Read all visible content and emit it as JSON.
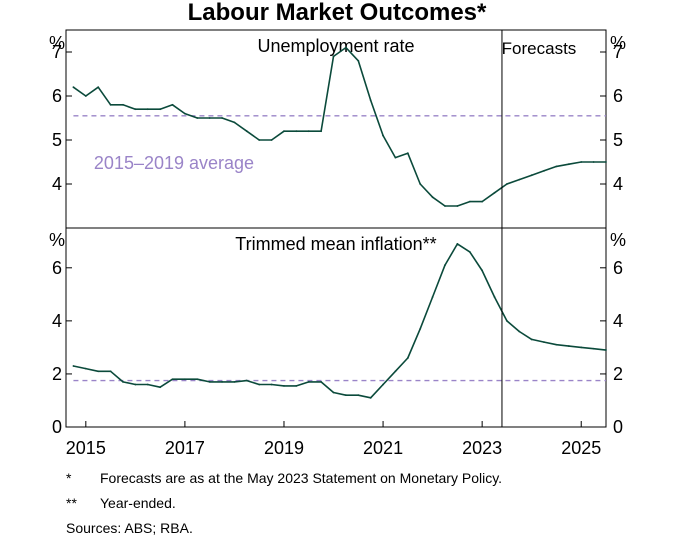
{
  "chart_data": {
    "type": "line",
    "title": "Labour Market Outcomes*",
    "x_ticks": [
      "2015",
      "2017",
      "2019",
      "2021",
      "2023",
      "2025"
    ],
    "xlim": [
      2014.6,
      2025.5
    ],
    "forecast_start": 2023.4,
    "forecast_label": "Forecasts",
    "line_color": "#0b4a3b",
    "average_color": "#9a84c8",
    "panels": [
      {
        "id": "unemployment",
        "title": "Unemployment rate",
        "unit_left": "%",
        "unit_right": "%",
        "ylim": [
          3.0,
          7.5
        ],
        "y_ticks": [
          "4",
          "5",
          "6",
          "7"
        ],
        "average_value": 5.55,
        "average_label": "2015–2019 average",
        "series": {
          "x": [
            2014.75,
            2015.0,
            2015.25,
            2015.5,
            2015.75,
            2016.0,
            2016.25,
            2016.5,
            2016.75,
            2017.0,
            2017.25,
            2017.5,
            2017.75,
            2018.0,
            2018.25,
            2018.5,
            2018.75,
            2019.0,
            2019.25,
            2019.5,
            2019.75,
            2020.0,
            2020.25,
            2020.5,
            2020.75,
            2021.0,
            2021.25,
            2021.5,
            2021.75,
            2022.0,
            2022.25,
            2022.5,
            2022.75,
            2023.0,
            2023.25,
            2023.5,
            2023.75,
            2024.0,
            2024.25,
            2024.5,
            2024.75,
            2025.0,
            2025.25,
            2025.5
          ],
          "y": [
            6.2,
            6.0,
            6.2,
            5.8,
            5.8,
            5.7,
            5.7,
            5.7,
            5.8,
            5.6,
            5.5,
            5.5,
            5.5,
            5.4,
            5.2,
            5.0,
            5.0,
            5.2,
            5.2,
            5.2,
            5.2,
            6.9,
            7.1,
            6.8,
            5.9,
            5.1,
            4.6,
            4.7,
            4.0,
            3.7,
            3.5,
            3.5,
            3.6,
            3.6,
            3.8,
            4.0,
            4.1,
            4.2,
            4.3,
            4.4,
            4.45,
            4.5,
            4.5,
            4.5
          ]
        }
      },
      {
        "id": "inflation",
        "title": "Trimmed mean inflation**",
        "unit_left": "%",
        "unit_right": "%",
        "ylim": [
          0,
          7.5
        ],
        "y_ticks": [
          "0",
          "2",
          "4",
          "6"
        ],
        "average_value": 1.75,
        "series": {
          "x": [
            2014.75,
            2015.0,
            2015.25,
            2015.5,
            2015.75,
            2016.0,
            2016.25,
            2016.5,
            2016.75,
            2017.0,
            2017.25,
            2017.5,
            2017.75,
            2018.0,
            2018.25,
            2018.5,
            2018.75,
            2019.0,
            2019.25,
            2019.5,
            2019.75,
            2020.0,
            2020.25,
            2020.5,
            2020.75,
            2021.0,
            2021.25,
            2021.5,
            2021.75,
            2022.0,
            2022.25,
            2022.5,
            2022.75,
            2023.0,
            2023.25,
            2023.5,
            2023.75,
            2024.0,
            2024.25,
            2024.5,
            2024.75,
            2025.0,
            2025.25,
            2025.5
          ],
          "y": [
            2.3,
            2.2,
            2.1,
            2.1,
            1.7,
            1.6,
            1.6,
            1.5,
            1.8,
            1.8,
            1.8,
            1.7,
            1.7,
            1.7,
            1.75,
            1.6,
            1.6,
            1.55,
            1.55,
            1.7,
            1.7,
            1.3,
            1.2,
            1.2,
            1.1,
            1.6,
            2.1,
            2.6,
            3.7,
            4.9,
            6.1,
            6.9,
            6.6,
            5.9,
            4.9,
            4.0,
            3.6,
            3.3,
            3.2,
            3.1,
            3.05,
            3.0,
            2.95,
            2.9
          ]
        }
      }
    ]
  },
  "footnotes": [
    {
      "mark": "*",
      "text": "Forecasts are as at the May 2023 Statement on Monetary Policy."
    },
    {
      "mark": "**",
      "text": "Year-ended."
    }
  ],
  "sources": "Sources: ABS; RBA."
}
